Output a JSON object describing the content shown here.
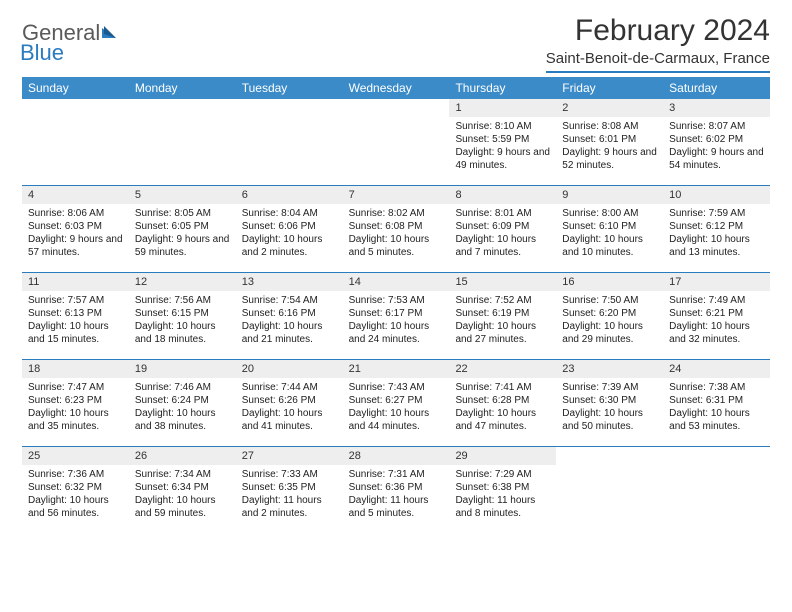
{
  "logo": {
    "general": "General",
    "blue": "Blue"
  },
  "title": "February 2024",
  "location": "Saint-Benoit-de-Carmaux, France",
  "colors": {
    "header_bg": "#3b8bc9",
    "accent": "#2b7bbf",
    "daynum_bg": "#eeeeee",
    "text": "#333333",
    "body_text": "#222222"
  },
  "dayNames": [
    "Sunday",
    "Monday",
    "Tuesday",
    "Wednesday",
    "Thursday",
    "Friday",
    "Saturday"
  ],
  "weeks": [
    [
      null,
      null,
      null,
      null,
      {
        "n": "1",
        "sr": "8:10 AM",
        "ss": "5:59 PM",
        "dl": "9 hours and 49 minutes."
      },
      {
        "n": "2",
        "sr": "8:08 AM",
        "ss": "6:01 PM",
        "dl": "9 hours and 52 minutes."
      },
      {
        "n": "3",
        "sr": "8:07 AM",
        "ss": "6:02 PM",
        "dl": "9 hours and 54 minutes."
      }
    ],
    [
      {
        "n": "4",
        "sr": "8:06 AM",
        "ss": "6:03 PM",
        "dl": "9 hours and 57 minutes."
      },
      {
        "n": "5",
        "sr": "8:05 AM",
        "ss": "6:05 PM",
        "dl": "9 hours and 59 minutes."
      },
      {
        "n": "6",
        "sr": "8:04 AM",
        "ss": "6:06 PM",
        "dl": "10 hours and 2 minutes."
      },
      {
        "n": "7",
        "sr": "8:02 AM",
        "ss": "6:08 PM",
        "dl": "10 hours and 5 minutes."
      },
      {
        "n": "8",
        "sr": "8:01 AM",
        "ss": "6:09 PM",
        "dl": "10 hours and 7 minutes."
      },
      {
        "n": "9",
        "sr": "8:00 AM",
        "ss": "6:10 PM",
        "dl": "10 hours and 10 minutes."
      },
      {
        "n": "10",
        "sr": "7:59 AM",
        "ss": "6:12 PM",
        "dl": "10 hours and 13 minutes."
      }
    ],
    [
      {
        "n": "11",
        "sr": "7:57 AM",
        "ss": "6:13 PM",
        "dl": "10 hours and 15 minutes."
      },
      {
        "n": "12",
        "sr": "7:56 AM",
        "ss": "6:15 PM",
        "dl": "10 hours and 18 minutes."
      },
      {
        "n": "13",
        "sr": "7:54 AM",
        "ss": "6:16 PM",
        "dl": "10 hours and 21 minutes."
      },
      {
        "n": "14",
        "sr": "7:53 AM",
        "ss": "6:17 PM",
        "dl": "10 hours and 24 minutes."
      },
      {
        "n": "15",
        "sr": "7:52 AM",
        "ss": "6:19 PM",
        "dl": "10 hours and 27 minutes."
      },
      {
        "n": "16",
        "sr": "7:50 AM",
        "ss": "6:20 PM",
        "dl": "10 hours and 29 minutes."
      },
      {
        "n": "17",
        "sr": "7:49 AM",
        "ss": "6:21 PM",
        "dl": "10 hours and 32 minutes."
      }
    ],
    [
      {
        "n": "18",
        "sr": "7:47 AM",
        "ss": "6:23 PM",
        "dl": "10 hours and 35 minutes."
      },
      {
        "n": "19",
        "sr": "7:46 AM",
        "ss": "6:24 PM",
        "dl": "10 hours and 38 minutes."
      },
      {
        "n": "20",
        "sr": "7:44 AM",
        "ss": "6:26 PM",
        "dl": "10 hours and 41 minutes."
      },
      {
        "n": "21",
        "sr": "7:43 AM",
        "ss": "6:27 PM",
        "dl": "10 hours and 44 minutes."
      },
      {
        "n": "22",
        "sr": "7:41 AM",
        "ss": "6:28 PM",
        "dl": "10 hours and 47 minutes."
      },
      {
        "n": "23",
        "sr": "7:39 AM",
        "ss": "6:30 PM",
        "dl": "10 hours and 50 minutes."
      },
      {
        "n": "24",
        "sr": "7:38 AM",
        "ss": "6:31 PM",
        "dl": "10 hours and 53 minutes."
      }
    ],
    [
      {
        "n": "25",
        "sr": "7:36 AM",
        "ss": "6:32 PM",
        "dl": "10 hours and 56 minutes."
      },
      {
        "n": "26",
        "sr": "7:34 AM",
        "ss": "6:34 PM",
        "dl": "10 hours and 59 minutes."
      },
      {
        "n": "27",
        "sr": "7:33 AM",
        "ss": "6:35 PM",
        "dl": "11 hours and 2 minutes."
      },
      {
        "n": "28",
        "sr": "7:31 AM",
        "ss": "6:36 PM",
        "dl": "11 hours and 5 minutes."
      },
      {
        "n": "29",
        "sr": "7:29 AM",
        "ss": "6:38 PM",
        "dl": "11 hours and 8 minutes."
      },
      null,
      null
    ]
  ],
  "labels": {
    "sunrise": "Sunrise:",
    "sunset": "Sunset:",
    "daylight": "Daylight:"
  }
}
